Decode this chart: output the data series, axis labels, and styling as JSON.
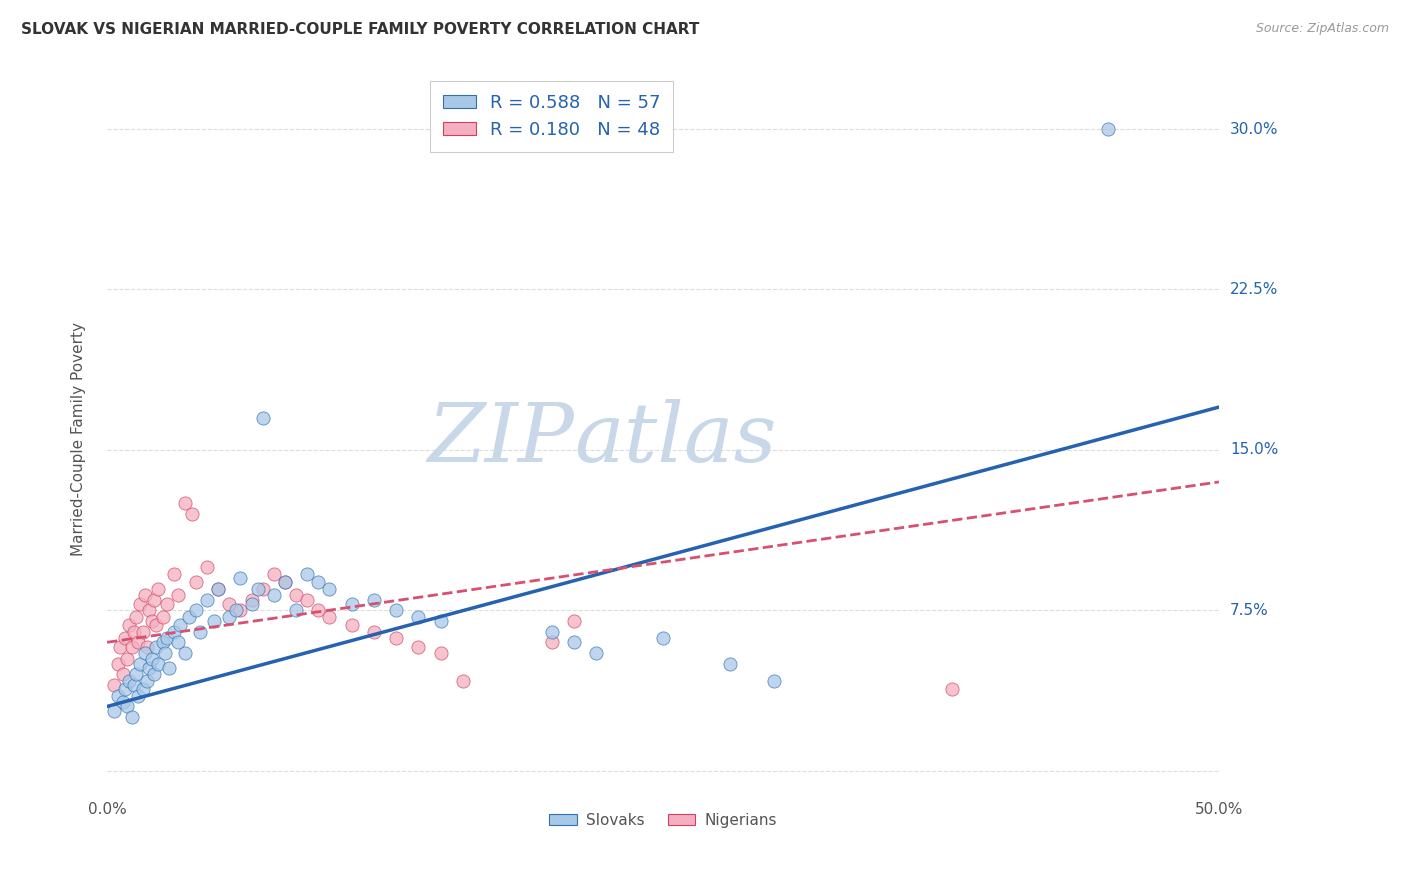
{
  "title": "SLOVAK VS NIGERIAN MARRIED-COUPLE FAMILY POVERTY CORRELATION CHART",
  "source": "Source: ZipAtlas.com",
  "ylabel": "Married-Couple Family Poverty",
  "xlim": [
    0.0,
    0.5
  ],
  "ylim": [
    -0.01,
    0.32
  ],
  "ytick_positions": [
    0.0,
    0.075,
    0.15,
    0.225,
    0.3
  ],
  "ytick_labels": [
    "",
    "7.5%",
    "15.0%",
    "22.5%",
    "30.0%"
  ],
  "slovak_color": "#a8c8e8",
  "nigerian_color": "#f4afc0",
  "slovak_line_color": "#2563b0",
  "nigerian_line_color": "#d94f70",
  "watermark_zip": "ZIP",
  "watermark_atlas": "atlas",
  "watermark_color_zip": "#c8d8e8",
  "watermark_color_atlas": "#c8d8e8",
  "R_slovak": 0.588,
  "N_slovak": 57,
  "R_nigerian": 0.18,
  "N_nigerian": 48,
  "slovak_scatter_x": [
    0.003,
    0.005,
    0.007,
    0.008,
    0.009,
    0.01,
    0.011,
    0.012,
    0.013,
    0.014,
    0.015,
    0.016,
    0.017,
    0.018,
    0.019,
    0.02,
    0.021,
    0.022,
    0.023,
    0.025,
    0.026,
    0.027,
    0.028,
    0.03,
    0.032,
    0.033,
    0.035,
    0.037,
    0.04,
    0.042,
    0.045,
    0.048,
    0.05,
    0.055,
    0.058,
    0.06,
    0.065,
    0.068,
    0.07,
    0.075,
    0.08,
    0.085,
    0.09,
    0.095,
    0.1,
    0.11,
    0.12,
    0.13,
    0.14,
    0.15,
    0.2,
    0.21,
    0.22,
    0.25,
    0.28,
    0.3,
    0.45
  ],
  "slovak_scatter_y": [
    0.028,
    0.035,
    0.032,
    0.038,
    0.03,
    0.042,
    0.025,
    0.04,
    0.045,
    0.035,
    0.05,
    0.038,
    0.055,
    0.042,
    0.048,
    0.052,
    0.045,
    0.058,
    0.05,
    0.06,
    0.055,
    0.062,
    0.048,
    0.065,
    0.06,
    0.068,
    0.055,
    0.072,
    0.075,
    0.065,
    0.08,
    0.07,
    0.085,
    0.072,
    0.075,
    0.09,
    0.078,
    0.085,
    0.165,
    0.082,
    0.088,
    0.075,
    0.092,
    0.088,
    0.085,
    0.078,
    0.08,
    0.075,
    0.072,
    0.07,
    0.065,
    0.06,
    0.055,
    0.062,
    0.05,
    0.042,
    0.3
  ],
  "nigerian_scatter_x": [
    0.003,
    0.005,
    0.006,
    0.007,
    0.008,
    0.009,
    0.01,
    0.011,
    0.012,
    0.013,
    0.014,
    0.015,
    0.016,
    0.017,
    0.018,
    0.019,
    0.02,
    0.021,
    0.022,
    0.023,
    0.025,
    0.027,
    0.03,
    0.032,
    0.035,
    0.038,
    0.04,
    0.045,
    0.05,
    0.055,
    0.06,
    0.065,
    0.07,
    0.075,
    0.08,
    0.085,
    0.09,
    0.095,
    0.1,
    0.11,
    0.12,
    0.13,
    0.14,
    0.15,
    0.16,
    0.2,
    0.21,
    0.38
  ],
  "nigerian_scatter_y": [
    0.04,
    0.05,
    0.058,
    0.045,
    0.062,
    0.052,
    0.068,
    0.058,
    0.065,
    0.072,
    0.06,
    0.078,
    0.065,
    0.082,
    0.058,
    0.075,
    0.07,
    0.08,
    0.068,
    0.085,
    0.072,
    0.078,
    0.092,
    0.082,
    0.125,
    0.12,
    0.088,
    0.095,
    0.085,
    0.078,
    0.075,
    0.08,
    0.085,
    0.092,
    0.088,
    0.082,
    0.08,
    0.075,
    0.072,
    0.068,
    0.065,
    0.062,
    0.058,
    0.055,
    0.042,
    0.06,
    0.07,
    0.038
  ],
  "background_color": "#ffffff",
  "grid_color": "#dddddd",
  "slovak_trendline_start_x": 0.0,
  "slovak_trendline_start_y": 0.03,
  "slovak_trendline_end_x": 0.5,
  "slovak_trendline_end_y": 0.17,
  "nigerian_trendline_start_x": 0.0,
  "nigerian_trendline_start_y": 0.06,
  "nigerian_trendline_end_x": 0.5,
  "nigerian_trendline_end_y": 0.135
}
